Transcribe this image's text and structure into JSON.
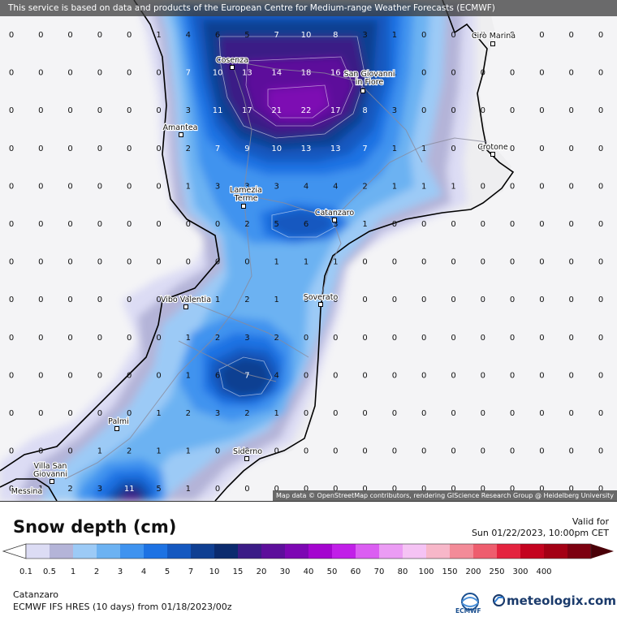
{
  "banner": "This service is based on data and products of the European Centre for Medium-range Weather Forecasts (ECMWF)",
  "map_credit": "Map data © OpenStreetMap contributors, rendering GIScience Research Group @ Heidelberg University",
  "cities": [
    "Cirò Marina",
    "Cosenza",
    "San Giovanni",
    "in Fiore",
    "Amantea",
    "Crotone",
    "Lamezia",
    "Terme",
    "Catanzaro",
    "Vibo Valentia",
    "Soverato",
    "Palmi",
    "Siderno",
    "Villa San",
    "Giovanni",
    "Messina"
  ],
  "grid_values": [
    [
      "0",
      "0",
      "0",
      "0",
      "0",
      "1",
      "4",
      "6",
      "5",
      "7",
      "10",
      "8",
      "3",
      "1",
      "0",
      "0",
      "0",
      "0",
      "0",
      "0",
      "0"
    ],
    [
      "0",
      "0",
      "0",
      "0",
      "0",
      "0",
      "7",
      "10",
      "13",
      "14",
      "18",
      "16",
      "4",
      "1",
      "0",
      "0",
      "0",
      "0",
      "0",
      "0",
      "0"
    ],
    [
      "0",
      "0",
      "0",
      "0",
      "0",
      "0",
      "3",
      "11",
      "17",
      "21",
      "22",
      "17",
      "8",
      "3",
      "0",
      "0",
      "0",
      "0",
      "0",
      "0",
      "0"
    ],
    [
      "0",
      "0",
      "0",
      "0",
      "0",
      "0",
      "2",
      "7",
      "9",
      "10",
      "13",
      "13",
      "7",
      "1",
      "1",
      "0",
      "0",
      "0",
      "0",
      "0",
      "0"
    ],
    [
      "0",
      "0",
      "0",
      "0",
      "0",
      "0",
      "1",
      "3",
      "3",
      "3",
      "4",
      "4",
      "2",
      "1",
      "1",
      "1",
      "0",
      "0",
      "0",
      "0",
      "0"
    ],
    [
      "0",
      "0",
      "0",
      "0",
      "0",
      "0",
      "0",
      "0",
      "2",
      "5",
      "6",
      "3",
      "1",
      "0",
      "0",
      "0",
      "0",
      "0",
      "0",
      "0",
      "0"
    ],
    [
      "0",
      "0",
      "0",
      "0",
      "0",
      "0",
      "0",
      "0",
      "0",
      "1",
      "1",
      "1",
      "0",
      "0",
      "0",
      "0",
      "0",
      "0",
      "0",
      "0",
      "0"
    ],
    [
      "0",
      "0",
      "0",
      "0",
      "0",
      "0",
      "0",
      "1",
      "2",
      "1",
      "0",
      "0",
      "0",
      "0",
      "0",
      "0",
      "0",
      "0",
      "0",
      "0",
      "0"
    ],
    [
      "0",
      "0",
      "0",
      "0",
      "0",
      "0",
      "1",
      "2",
      "3",
      "2",
      "0",
      "0",
      "0",
      "0",
      "0",
      "0",
      "0",
      "0",
      "0",
      "0",
      "0"
    ],
    [
      "0",
      "0",
      "0",
      "0",
      "0",
      "0",
      "1",
      "6",
      "7",
      "4",
      "0",
      "0",
      "0",
      "0",
      "0",
      "0",
      "0",
      "0",
      "0",
      "0",
      "0"
    ],
    [
      "0",
      "0",
      "0",
      "0",
      "0",
      "1",
      "2",
      "3",
      "2",
      "1",
      "0",
      "0",
      "0",
      "0",
      "0",
      "0",
      "0",
      "0",
      "0",
      "0",
      "0"
    ],
    [
      "0",
      "0",
      "0",
      "1",
      "2",
      "1",
      "1",
      "0",
      "0",
      "0",
      "0",
      "0",
      "0",
      "0",
      "0",
      "0",
      "0",
      "0",
      "0",
      "0",
      "0"
    ],
    [
      "0",
      "1",
      "2",
      "3",
      "11",
      "5",
      "1",
      "0",
      "0",
      "0",
      "0",
      "0",
      "0",
      "0",
      "0",
      "0",
      "0",
      "0",
      "0",
      "0",
      "0"
    ]
  ],
  "legend": {
    "title": "Snow depth (cm)",
    "valid_label": "Valid for",
    "valid_time": "Sun 01/22/2023, 10:00pm CET",
    "ticks": [
      "0.1",
      "0.5",
      "1",
      "2",
      "3",
      "4",
      "5",
      "7",
      "10",
      "15",
      "20",
      "30",
      "40",
      "50",
      "60",
      "70",
      "80",
      "100",
      "150",
      "200",
      "250",
      "300",
      "400"
    ],
    "colors": [
      "#dcdcf4",
      "#b4b4d8",
      "#9ccaf6",
      "#6cb2f2",
      "#3f93ef",
      "#1d72e3",
      "#1458c0",
      "#0f3f92",
      "#0b2b6e",
      "#3b1c86",
      "#5d0f9b",
      "#7d07b3",
      "#a405cf",
      "#c11fe8",
      "#db5ef2",
      "#eb9cf4",
      "#f5c3f4",
      "#f7b7c9",
      "#f38b98",
      "#ee5d6e",
      "#e4233f",
      "#c4031f",
      "#a30014",
      "#7c0010"
    ]
  },
  "footer": {
    "location": "Catanzaro",
    "model": "ECMWF IFS HRES (10 days) from 01/18/2023/00z",
    "ecmwf_label": "ECMWF",
    "brand": "meteologix.com"
  }
}
